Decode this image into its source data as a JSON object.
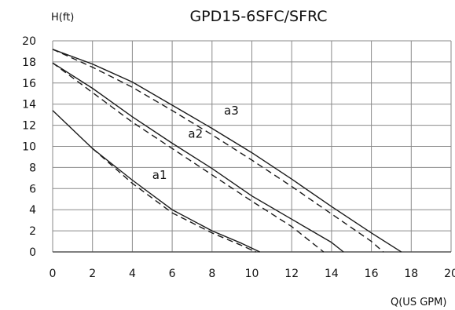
{
  "chart_data": {
    "type": "line",
    "title": "GPD15-6SFC/SFRC",
    "xlabel": "Q(US GPM)",
    "ylabel": "H(ft)",
    "xlim": [
      0,
      20
    ],
    "ylim": [
      0,
      20
    ],
    "xticks": [
      "0",
      "2",
      "4",
      "6",
      "8",
      "10",
      "12",
      "14",
      "16",
      "18",
      "20"
    ],
    "yticks": [
      "0",
      "2",
      "4",
      "6",
      "8",
      "10",
      "12",
      "14",
      "16",
      "18",
      "20"
    ],
    "grid": true,
    "legend": "none",
    "series": [
      {
        "name": "a1",
        "style": "solid",
        "x": [
          0,
          2,
          4,
          6,
          8,
          9.5,
          10.4
        ],
        "y": [
          13.4,
          9.8,
          6.8,
          4.0,
          2.0,
          0.8,
          0
        ]
      },
      {
        "name": "a1",
        "style": "dashed",
        "x": [
          2,
          4,
          6,
          8,
          9.5,
          10.2
        ],
        "y": [
          9.8,
          6.5,
          3.7,
          1.8,
          0.6,
          0
        ]
      },
      {
        "name": "a2",
        "style": "solid",
        "x": [
          0,
          2,
          4,
          6,
          8,
          10,
          12,
          14,
          14.6
        ],
        "y": [
          17.9,
          15.5,
          12.8,
          10.3,
          7.9,
          5.3,
          3.1,
          0.9,
          0
        ]
      },
      {
        "name": "a2",
        "style": "dashed",
        "x": [
          0,
          2,
          4,
          6,
          8,
          10,
          12,
          13.6
        ],
        "y": [
          17.9,
          15.1,
          12.3,
          9.8,
          7.3,
          4.8,
          2.4,
          0
        ]
      },
      {
        "name": "a3",
        "style": "solid",
        "x": [
          0,
          2,
          4,
          6,
          8,
          10,
          12,
          14,
          16,
          17.5
        ],
        "y": [
          19.2,
          17.8,
          16.1,
          13.9,
          11.7,
          9.4,
          6.9,
          4.3,
          1.8,
          0
        ]
      },
      {
        "name": "a3",
        "style": "dashed",
        "x": [
          0,
          2,
          4,
          6,
          8,
          10,
          12,
          14,
          16,
          16.6
        ],
        "y": [
          19.2,
          17.5,
          15.6,
          13.4,
          11.1,
          8.7,
          6.2,
          3.6,
          1.0,
          0
        ]
      }
    ],
    "annotations": [
      {
        "text": "a1",
        "x": 5.0,
        "y": 6.9
      },
      {
        "text": "a2",
        "x": 6.8,
        "y": 10.8
      },
      {
        "text": "a3",
        "x": 8.6,
        "y": 13.0
      }
    ],
    "colors": {
      "curve": "#1a1a1a",
      "grid": "#8a8a8a",
      "axis": "#555555",
      "text": "#111111"
    }
  }
}
